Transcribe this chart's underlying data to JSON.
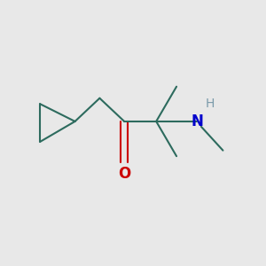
{
  "background_color": "#e8e8e8",
  "bond_color": "#2d6b5e",
  "oxygen_color": "#cc0000",
  "nitrogen_color": "#0000cc",
  "hydrogen_color": "#7a9aaa",
  "line_width": 1.5,
  "figsize": [
    3.0,
    3.0
  ],
  "dpi": 100,
  "xlim": [
    0.05,
    0.95
  ],
  "ylim": [
    0.15,
    0.85
  ]
}
